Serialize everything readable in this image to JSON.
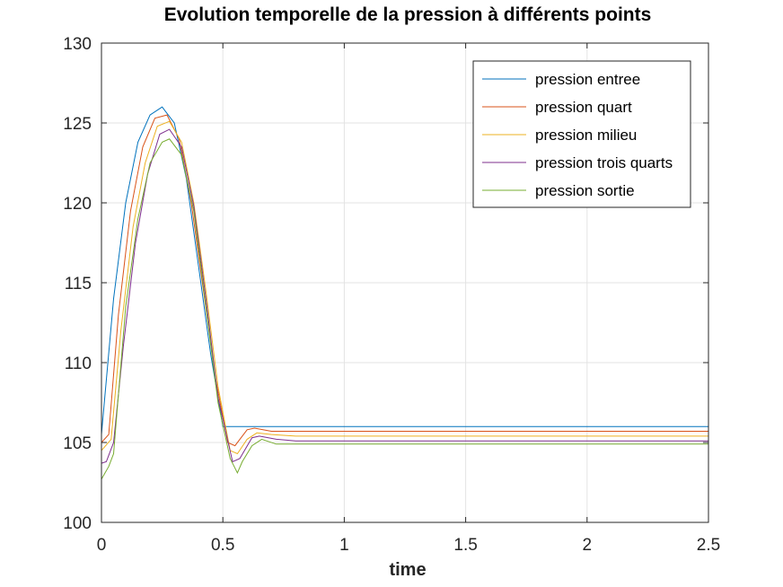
{
  "chart_data": {
    "type": "line",
    "title": "Evolution temporelle de la pression à différents points",
    "xlabel": "time",
    "ylabel": "",
    "xlim": [
      0,
      2.5
    ],
    "ylim": [
      100,
      130
    ],
    "xticks": [
      0,
      0.5,
      1,
      1.5,
      2,
      2.5
    ],
    "xtick_labels": [
      "0",
      "0.5",
      "1",
      "1.5",
      "2",
      "2.5"
    ],
    "yticks": [
      100,
      105,
      110,
      115,
      120,
      125,
      130
    ],
    "ytick_labels": [
      "100",
      "105",
      "110",
      "115",
      "120",
      "125",
      "130"
    ],
    "grid": true,
    "legend_position": "top-right",
    "series": [
      {
        "name": "pression entree",
        "color": "#0072BD",
        "x": [
          0,
          0.05,
          0.1,
          0.15,
          0.2,
          0.25,
          0.3,
          0.35,
          0.4,
          0.45,
          0.5,
          0.52,
          0.6,
          0.8,
          1.0,
          1.5,
          2.0,
          2.5
        ],
        "y": [
          105.5,
          114.0,
          120.0,
          123.8,
          125.5,
          126.0,
          125.0,
          121.5,
          116.0,
          110.5,
          106.0,
          106.0,
          106.0,
          106.0,
          106.0,
          106.0,
          106.0,
          106.0
        ]
      },
      {
        "name": "pression quart",
        "color": "#D95319",
        "x": [
          0,
          0.03,
          0.07,
          0.12,
          0.17,
          0.22,
          0.27,
          0.32,
          0.37,
          0.42,
          0.47,
          0.52,
          0.55,
          0.6,
          0.63,
          0.7,
          0.8,
          1.0,
          1.5,
          2.0,
          2.5
        ],
        "y": [
          105.0,
          105.5,
          113.0,
          119.5,
          123.5,
          125.3,
          125.5,
          124.0,
          120.0,
          114.5,
          109.0,
          105.0,
          104.8,
          105.8,
          105.9,
          105.7,
          105.7,
          105.7,
          105.7,
          105.7,
          105.7
        ]
      },
      {
        "name": "pression milieu",
        "color": "#EDB120",
        "x": [
          0,
          0.04,
          0.08,
          0.13,
          0.18,
          0.23,
          0.28,
          0.33,
          0.38,
          0.43,
          0.48,
          0.53,
          0.56,
          0.6,
          0.64,
          0.7,
          0.8,
          1.0,
          1.5,
          2.0,
          2.5
        ],
        "y": [
          104.5,
          105.2,
          112.0,
          118.5,
          122.5,
          124.8,
          125.1,
          123.8,
          120.0,
          114.5,
          108.5,
          104.5,
          104.3,
          105.2,
          105.6,
          105.5,
          105.4,
          105.4,
          105.4,
          105.4,
          105.4
        ]
      },
      {
        "name": "pression trois quarts",
        "color": "#7E2F8E",
        "x": [
          0,
          0.02,
          0.05,
          0.09,
          0.14,
          0.19,
          0.24,
          0.28,
          0.33,
          0.38,
          0.43,
          0.48,
          0.54,
          0.57,
          0.62,
          0.65,
          0.72,
          0.8,
          1.0,
          1.5,
          2.0,
          2.5
        ],
        "y": [
          103.7,
          103.8,
          105.0,
          111.0,
          117.5,
          121.8,
          124.3,
          124.6,
          123.5,
          119.8,
          114.0,
          107.8,
          103.8,
          104.0,
          105.3,
          105.4,
          105.2,
          105.1,
          105.1,
          105.1,
          105.1,
          105.1
        ]
      },
      {
        "name": "pression sortie",
        "color": "#77AC30",
        "x": [
          0,
          0.03,
          0.05,
          0.07,
          0.1,
          0.15,
          0.2,
          0.25,
          0.28,
          0.33,
          0.38,
          0.43,
          0.48,
          0.53,
          0.56,
          0.58,
          0.62,
          0.66,
          0.72,
          0.8,
          1.0,
          1.5,
          2.0,
          2.5
        ],
        "y": [
          102.7,
          103.5,
          104.3,
          108.0,
          113.5,
          119.0,
          122.5,
          123.8,
          124.0,
          123.0,
          119.5,
          113.5,
          107.5,
          104.0,
          103.1,
          103.8,
          104.8,
          105.2,
          104.9,
          104.9,
          104.9,
          104.9,
          104.9,
          104.9
        ]
      }
    ]
  }
}
